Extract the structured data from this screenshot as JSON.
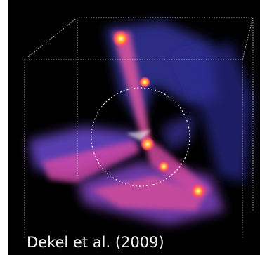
{
  "image": {
    "caption": "Dekel et al. (2009)"
  }
}
